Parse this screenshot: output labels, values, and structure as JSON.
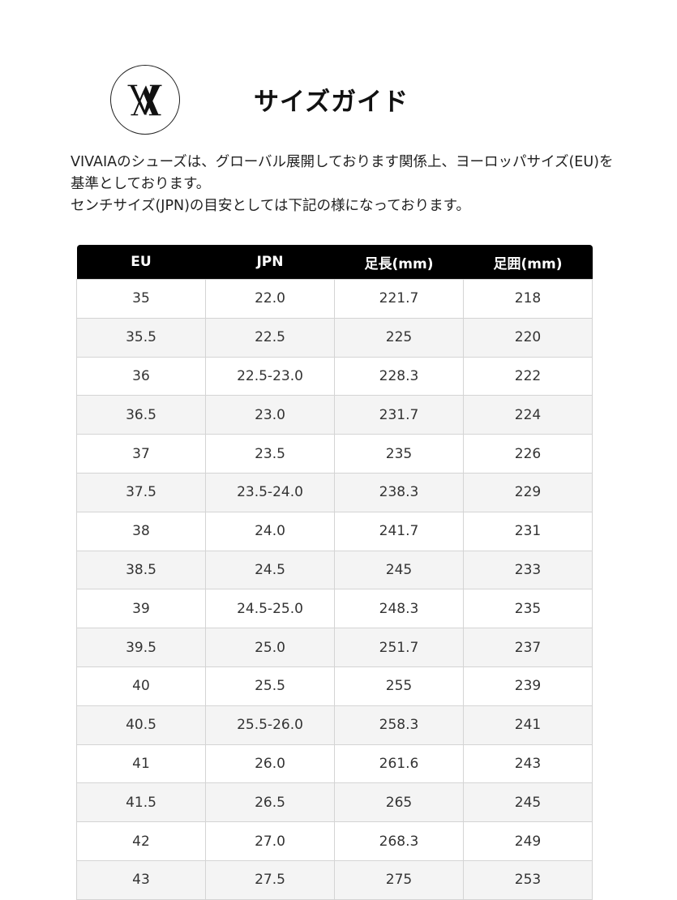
{
  "header": {
    "logo_text": "VA",
    "title": "サイズガイド"
  },
  "intro": {
    "line1": "VIVAIAのシューズは、グローバル展開しております関係上、ヨーロッパサイズ(EU)を基準としております。",
    "line2": "センチサイズ(JPN)の目安としては下記の様になっております。"
  },
  "table": {
    "headers": [
      "EU",
      "JPN",
      "足長(mm)",
      "足囲(mm)"
    ],
    "rows": [
      [
        "35",
        "22.0",
        "221.7",
        "218"
      ],
      [
        "35.5",
        "22.5",
        "225",
        "220"
      ],
      [
        "36",
        "22.5-23.0",
        "228.3",
        "222"
      ],
      [
        "36.5",
        "23.0",
        "231.7",
        "224"
      ],
      [
        "37",
        "23.5",
        "235",
        "226"
      ],
      [
        "37.5",
        "23.5-24.0",
        "238.3",
        "229"
      ],
      [
        "38",
        "24.0",
        "241.7",
        "231"
      ],
      [
        "38.5",
        "24.5",
        "245",
        "233"
      ],
      [
        "39",
        "24.5-25.0",
        "248.3",
        "235"
      ],
      [
        "39.5",
        "25.0",
        "251.7",
        "237"
      ],
      [
        "40",
        "25.5",
        "255",
        "239"
      ],
      [
        "40.5",
        "25.5-26.0",
        "258.3",
        "241"
      ],
      [
        "41",
        "26.0",
        "261.6",
        "243"
      ],
      [
        "41.5",
        "26.5",
        "265",
        "245"
      ],
      [
        "42",
        "27.0",
        "268.3",
        "249"
      ],
      [
        "43",
        "27.5",
        "275",
        "253"
      ]
    ]
  }
}
